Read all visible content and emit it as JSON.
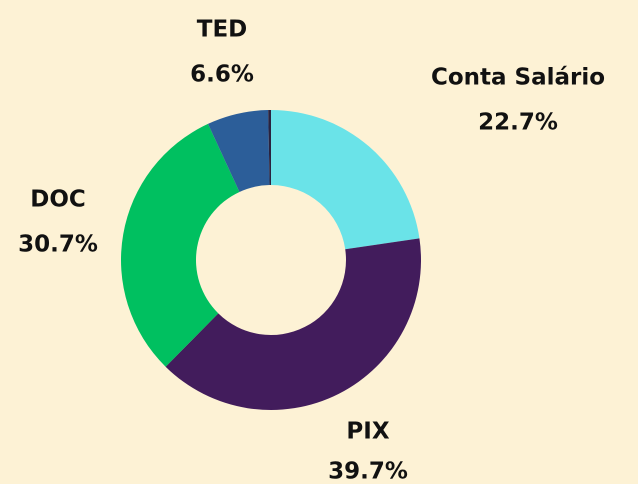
{
  "chart_data": {
    "type": "donut",
    "categories": [
      "Conta Salário",
      "PIX",
      "DOC",
      "TED",
      null
    ],
    "values": [
      22.7,
      39.7,
      30.7,
      6.6,
      0.3
    ],
    "value_labels": [
      "22.7%",
      "39.7%",
      "30.7%",
      "6.6%",
      null
    ],
    "colors": [
      "#6ae3e8",
      "#421c5c",
      "#00c060",
      "#2c5e99",
      "#2a2340"
    ]
  }
}
